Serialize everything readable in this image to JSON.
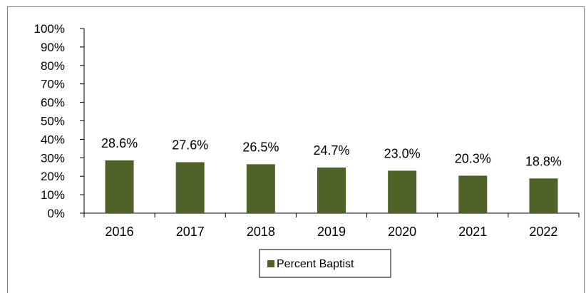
{
  "chart_data": {
    "type": "bar",
    "categories": [
      "2016",
      "2017",
      "2018",
      "2019",
      "2020",
      "2021",
      "2022"
    ],
    "series": [
      {
        "name": "Percent Baptist",
        "values": [
          28.6,
          27.6,
          26.5,
          24.7,
          23.0,
          20.3,
          18.8
        ],
        "data_labels": [
          "28.6%",
          "27.6%",
          "26.5%",
          "24.7%",
          "23.0%",
          "20.3%",
          "18.8%"
        ],
        "color": "#4f6228"
      }
    ],
    "ylim": [
      0,
      100
    ],
    "y_ticks": [
      "0%",
      "10%",
      "20%",
      "30%",
      "40%",
      "50%",
      "60%",
      "70%",
      "80%",
      "90%",
      "100%"
    ],
    "y_tick_values": [
      0,
      10,
      20,
      30,
      40,
      50,
      60,
      70,
      80,
      90,
      100
    ],
    "title": "",
    "xlabel": "",
    "ylabel": "",
    "grid": false,
    "legend_position": "bottom",
    "axis_color": "#000000",
    "frame_color": "#7f7f7f"
  }
}
